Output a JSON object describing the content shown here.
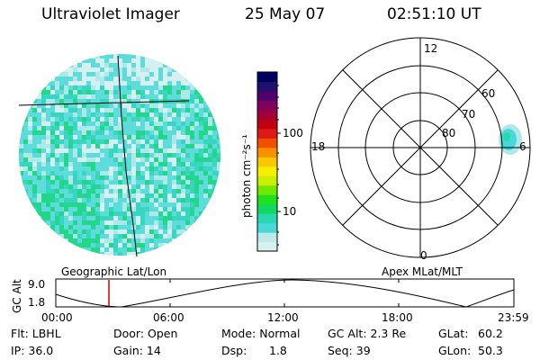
{
  "header": {
    "instrument": "Ultraviolet Imager",
    "date": "25 May 07",
    "time": "02:51:10 UT"
  },
  "colorbar": {
    "unit_label": "photon cm⁻²s⁻¹",
    "ticks": [
      "100",
      "10"
    ],
    "colors": [
      "#d8f0f0",
      "#bfe8e8",
      "#48d8d8",
      "#28d8b0",
      "#10d860",
      "#20e020",
      "#70e800",
      "#c8f000",
      "#f0f000",
      "#f8c800",
      "#f89000",
      "#f05000",
      "#e01818",
      "#c00010",
      "#a00038",
      "#800060",
      "#50006a",
      "#201070",
      "#000060"
    ]
  },
  "left_panel": {
    "label": "Geographic Lat/Lon",
    "disk_colors": [
      "#d4f0f0",
      "#aee8e8",
      "#5edcdc",
      "#36d6c0",
      "#22d68a"
    ]
  },
  "right_panel": {
    "label": "Apex MLat/MLT",
    "mlt_labels": [
      "12",
      "18",
      "6",
      "0"
    ],
    "mlat_labels": [
      "60",
      "70",
      "80"
    ]
  },
  "timeline": {
    "y_axis_title": "GC Alt",
    "y_ticks": [
      "9.0",
      "1.8"
    ],
    "x_ticks": [
      "00:00",
      "06:00",
      "12:00",
      "18:00",
      "23:59"
    ],
    "cursor_color": "#d00000"
  },
  "status": {
    "row1": {
      "filter": "Flt: LBHL",
      "door": "Door: Open",
      "mode": "Mode: Normal",
      "gc_alt": "GC Alt: 2.3 Re",
      "glat_label": "GLat:",
      "glat_value": "60.2"
    },
    "row2": {
      "ip": "IP: 36.0",
      "gain": "Gain: 14",
      "dsp_label": "Dsp:",
      "dsp_value": "1.8",
      "seq": "Seq: 39",
      "glon_label": "GLon:",
      "glon_value": "50.3"
    }
  }
}
